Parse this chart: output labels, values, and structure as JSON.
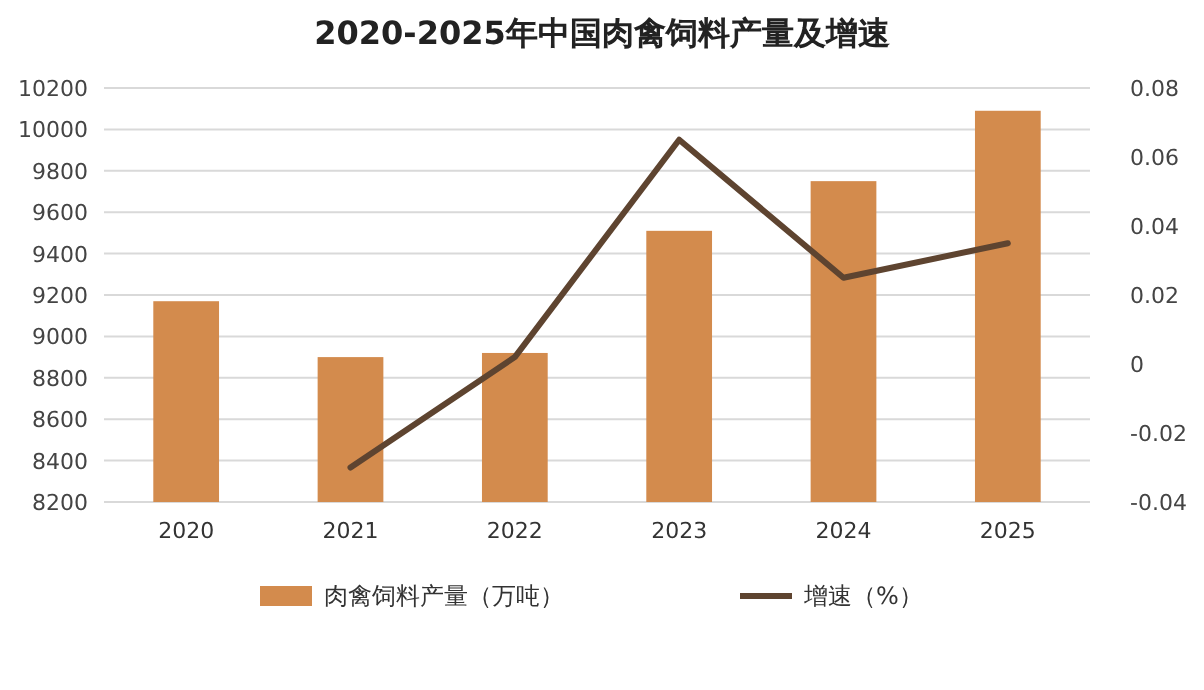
{
  "chart_data": {
    "type": "bar",
    "title": "2020-2025年中国肉禽饲料产量及增速",
    "categories": [
      "2020",
      "2021",
      "2022",
      "2023",
      "2024",
      "2025"
    ],
    "series": [
      {
        "name": "肉禽饲料产量（万吨）",
        "color": "#d38b4d",
        "values": [
          9170,
          8900,
          8920,
          9510,
          9750,
          10090
        ]
      },
      {
        "name": "增速（%）",
        "type": "line",
        "axis": "y2",
        "color": "#5e4430",
        "values": [
          null,
          -0.03,
          0.002,
          0.065,
          0.025,
          0.035
        ]
      }
    ],
    "ylim": [
      8200,
      10200
    ],
    "yticks": [
      8200,
      8400,
      8600,
      8800,
      9000,
      9200,
      9400,
      9600,
      9800,
      10000,
      10200
    ],
    "y2lim": [
      -0.04,
      0.08
    ],
    "y2ticks": [
      {
        "value": -0.04,
        "label": "-0.04"
      },
      {
        "value": -0.02,
        "label": "-0.02"
      },
      0,
      {
        "value": 0.02,
        "label": "0.02"
      },
      {
        "value": 0.04,
        "label": "0.04"
      },
      {
        "value": 0.06,
        "label": "0.06"
      },
      {
        "value": 0.08,
        "label": "0.08"
      }
    ],
    "grid": "y",
    "legend": "bottom",
    "marker": "none",
    "line_style": "solid"
  }
}
